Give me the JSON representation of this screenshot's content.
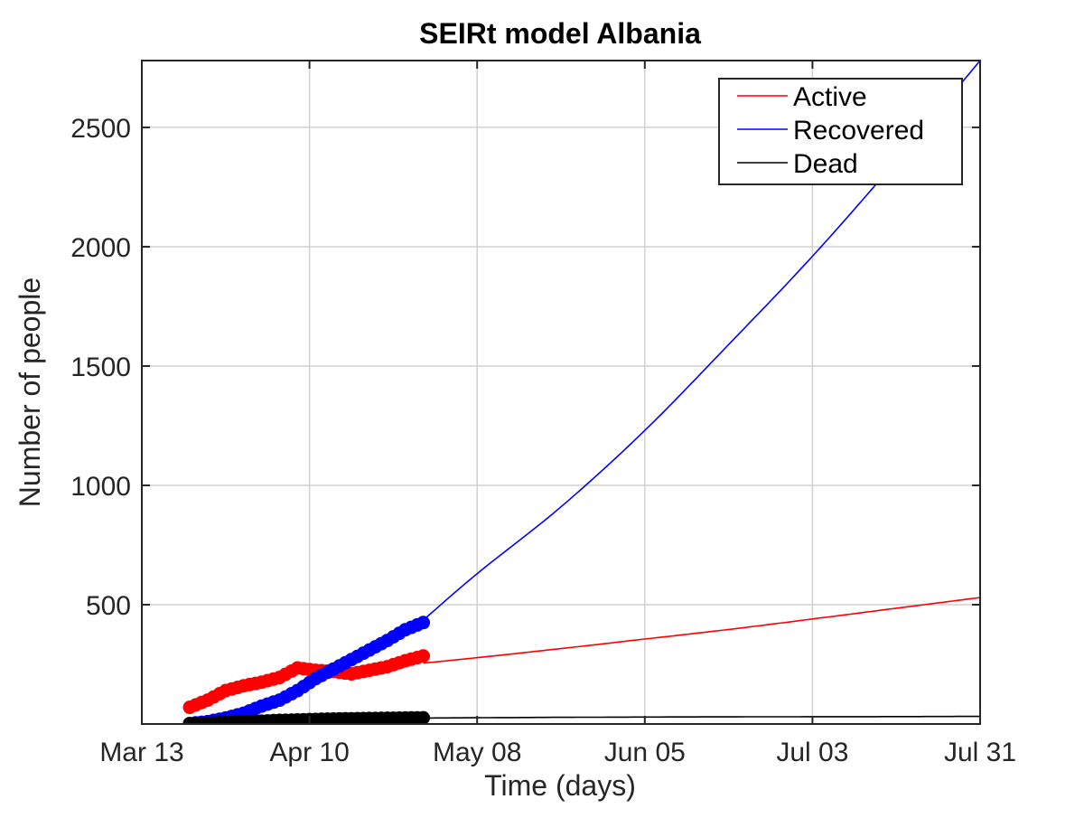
{
  "chart_data": {
    "type": "line",
    "title": "SEIRt model Albania",
    "xlabel": "Time (days)",
    "ylabel": "Number of people",
    "x_start_date": "2020-03-13",
    "xlim": [
      "2020-03-13",
      "2020-07-31"
    ],
    "ylim": [
      0,
      2780
    ],
    "x_ticks": [
      "Mar 13",
      "Apr 10",
      "May 08",
      "Jun 05",
      "Jul 03",
      "Jul 31"
    ],
    "y_ticks": [
      500,
      1000,
      1500,
      2000,
      2500
    ],
    "grid": true,
    "legend_position": "top-right",
    "colors": {
      "Active": "#ff0000",
      "Recovered": "#0000ff",
      "Dead": "#000000"
    },
    "series": [
      {
        "name": "Active",
        "style": "line",
        "x": [
          "2020-04-29",
          "2020-05-08",
          "2020-05-22",
          "2020-06-05",
          "2020-06-19",
          "2020-07-03",
          "2020-07-17",
          "2020-07-31"
        ],
        "y": [
          255,
          278,
          316,
          356,
          396,
          440,
          485,
          530
        ]
      },
      {
        "name": "Recovered",
        "style": "line",
        "x": [
          "2020-04-29",
          "2020-05-08",
          "2020-05-22",
          "2020-06-05",
          "2020-06-19",
          "2020-07-03",
          "2020-07-17",
          "2020-07-31"
        ],
        "y": [
          435,
          630,
          910,
          1230,
          1590,
          1960,
          2360,
          2780
        ]
      },
      {
        "name": "Dead",
        "style": "line",
        "x": [
          "2020-04-29",
          "2020-05-22",
          "2020-06-19",
          "2020-07-17",
          "2020-07-31"
        ],
        "y": [
          25,
          28,
          30,
          31,
          32
        ]
      },
      {
        "name": "Active data",
        "style": "markers",
        "x": [
          "2020-03-21",
          "2020-03-24",
          "2020-03-27",
          "2020-03-30",
          "2020-04-02",
          "2020-04-05",
          "2020-04-08",
          "2020-04-11",
          "2020-04-14",
          "2020-04-17",
          "2020-04-20",
          "2020-04-23",
          "2020-04-26",
          "2020-04-29"
        ],
        "y": [
          70,
          100,
          140,
          160,
          175,
          195,
          235,
          225,
          220,
          210,
          225,
          240,
          265,
          285
        ]
      },
      {
        "name": "Recovered data",
        "style": "markers",
        "x": [
          "2020-03-21",
          "2020-03-24",
          "2020-03-27",
          "2020-03-30",
          "2020-04-02",
          "2020-04-05",
          "2020-04-08",
          "2020-04-11",
          "2020-04-14",
          "2020-04-17",
          "2020-04-20",
          "2020-04-23",
          "2020-04-26",
          "2020-04-29"
        ],
        "y": [
          2,
          10,
          25,
          45,
          75,
          100,
          140,
          190,
          230,
          270,
          310,
          350,
          395,
          425
        ]
      },
      {
        "name": "Dead data",
        "style": "markers",
        "x": [
          "2020-03-21",
          "2020-03-24",
          "2020-03-27",
          "2020-03-30",
          "2020-04-02",
          "2020-04-05",
          "2020-04-08",
          "2020-04-11",
          "2020-04-14",
          "2020-04-17",
          "2020-04-20",
          "2020-04-23",
          "2020-04-26",
          "2020-04-29"
        ],
        "y": [
          1,
          3,
          6,
          9,
          12,
          15,
          17,
          19,
          21,
          22,
          23,
          24,
          25,
          26
        ]
      }
    ]
  }
}
